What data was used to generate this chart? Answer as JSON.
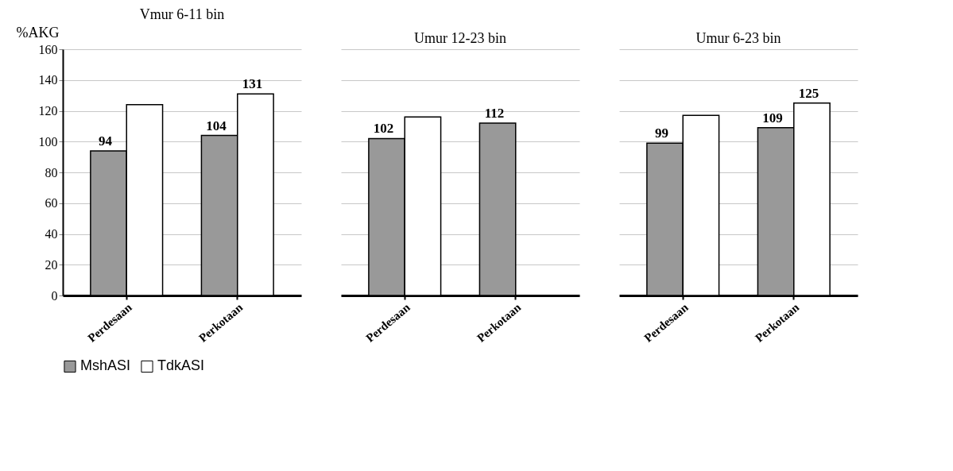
{
  "chart_data": [
    {
      "type": "bar",
      "title": "Vmur 6-11 bin",
      "ylabel": "%AKG",
      "categories": [
        "Perdesaan",
        "Perkotaan"
      ],
      "ylim": [
        0,
        160
      ],
      "yticks": [
        0,
        20,
        40,
        60,
        80,
        100,
        120,
        140,
        160
      ],
      "grid": "y",
      "legend": "bottom",
      "series": [
        {
          "name": "MshASI",
          "color": "#999999",
          "values": [
            94,
            104
          ],
          "value_labels": [
            "94",
            "104"
          ]
        },
        {
          "name": "TdkASI",
          "color": "#ffffff",
          "values": [
            124,
            131
          ],
          "value_labels": [
            null,
            "131"
          ]
        }
      ]
    },
    {
      "type": "bar",
      "title": "Umur 12-23 bin",
      "categories": [
        "Perdesaan",
        "Perkotaan"
      ],
      "ylim": [
        0,
        160
      ],
      "yticks": [
        0,
        20,
        40,
        60,
        80,
        100,
        120,
        140,
        160
      ],
      "grid": "y",
      "tick_labels": "x",
      "series": [
        {
          "color": "#999999",
          "values": [
            102,
            112
          ],
          "value_labels": [
            "102",
            "112"
          ]
        },
        {
          "color": "#ffffff",
          "values": [
            116,
            null
          ]
        }
      ]
    },
    {
      "type": "bar",
      "title": "Umur 6-23 bin",
      "categories": [
        "Perdesaan",
        "Perkotaan"
      ],
      "ylim": [
        0,
        160
      ],
      "yticks": [
        0,
        20,
        40,
        60,
        80,
        100,
        120,
        140,
        160
      ],
      "grid": "y",
      "tick_labels": "x",
      "series": [
        {
          "color": "#999999",
          "values": [
            99,
            109
          ],
          "value_labels": [
            "99",
            "109"
          ]
        },
        {
          "color": "#ffffff",
          "values": [
            117,
            125
          ],
          "value_labels": [
            null,
            "125"
          ]
        }
      ]
    }
  ]
}
